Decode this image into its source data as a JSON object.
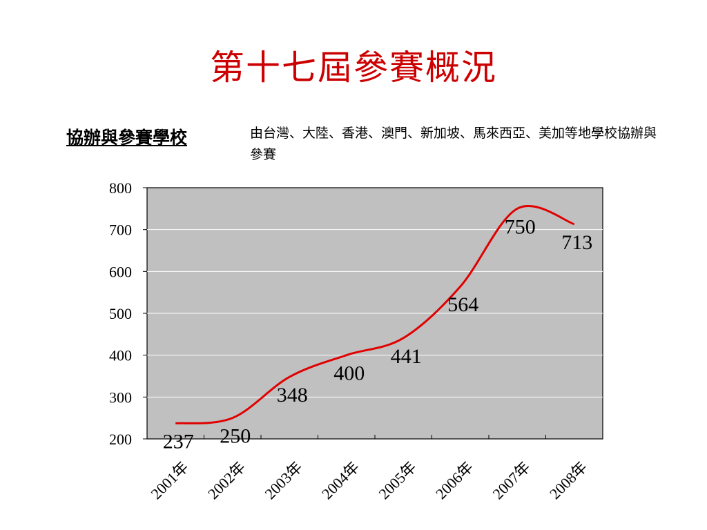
{
  "slide": {
    "title": "第十七屆參賽概況",
    "subtitle": "協辦與參賽學校",
    "description": "由台灣、大陸、香港、澳門、新加坡、馬來西亞、美加等地學校協辦與參賽"
  },
  "chart_data": {
    "type": "line",
    "categories": [
      "2001年",
      "2002年",
      "2003年",
      "2004年",
      "2005年",
      "2006年",
      "2007年",
      "2008年"
    ],
    "values": [
      237,
      250,
      348,
      400,
      441,
      564,
      750,
      713
    ],
    "ylim": [
      200,
      800
    ],
    "yticks": [
      "200",
      "300",
      "400",
      "500",
      "600",
      "700",
      "800"
    ],
    "grid": true,
    "legend": "none",
    "colors": {
      "line": "#e00000",
      "plot_bg": "#c0c0c0",
      "grid": "#ffffff"
    }
  }
}
